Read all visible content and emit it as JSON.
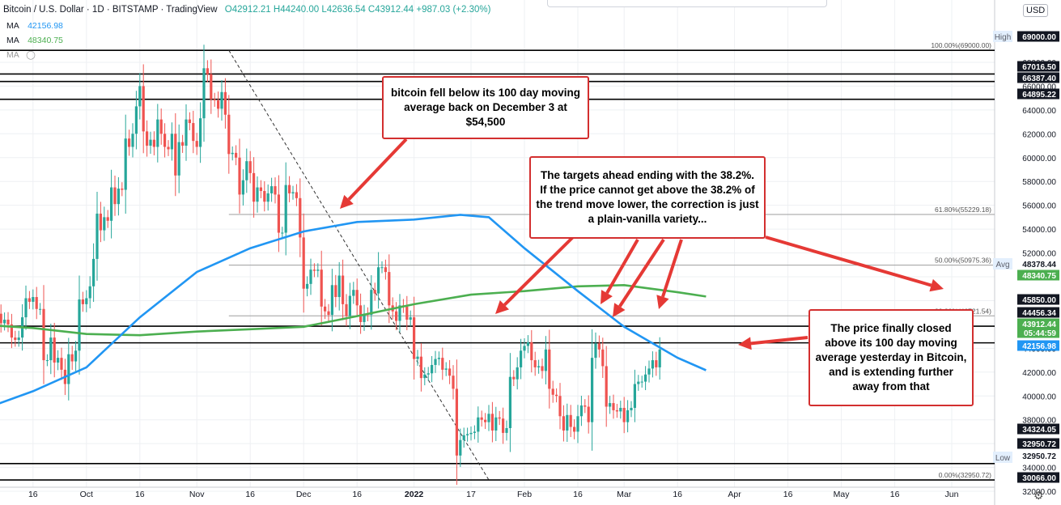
{
  "header": {
    "symbol": "Bitcoin / U.S. Dollar · 1D · BITSTAMP · TradingView",
    "ohlc": "O42912.21 H44240.00 L42636.54 C43912.44 +987.03 (+2.30%)",
    "ma_rows": [
      {
        "label": "MA",
        "value": "42156.98",
        "color": "#2196f3"
      },
      {
        "label": "MA",
        "value": "48340.75",
        "color": "#4caf50"
      },
      {
        "label": "MA",
        "value": "",
        "color": "#999999"
      }
    ]
  },
  "currency_button": "USD",
  "price_labels": [
    {
      "text": "69000.00",
      "style": "dark"
    },
    {
      "text": "67016.50",
      "style": "dark"
    },
    {
      "text": "66387.40",
      "style": "dark"
    },
    {
      "text": "64895.22",
      "style": "dark"
    },
    {
      "text": "45850.00",
      "style": "dark"
    },
    {
      "text": "44456.34",
      "style": "dark"
    },
    {
      "text": "34324.05",
      "style": "dark"
    },
    {
      "text": "32950.72",
      "style": "dark"
    },
    {
      "text": "30066.00",
      "style": "dark"
    },
    {
      "text": "48378.44",
      "style": "plain"
    },
    {
      "text": "48340.75",
      "style": "green"
    },
    {
      "text": "43912.44",
      "style": "green"
    },
    {
      "text": "05:44:59",
      "style": "green"
    },
    {
      "text": "42156.98",
      "style": "blue"
    },
    {
      "text": "32950.72",
      "style": "plain"
    }
  ],
  "price_tags": {
    "high": "High",
    "avg": "Avg",
    "low": "Low"
  },
  "notes": {
    "top": "bitcoin fell below its 100 day moving average back on December 3 at $54,500",
    "middle": "The targets ahead ending with the 38.2%. If the price cannot get above the 38.2% of the trend move lower, the correction is just a plain-vanilla variety...",
    "right": "The price finally closed above its 100 day moving average yesterday in Bitcoin, and is extending further away from that"
  },
  "chart_data": {
    "type": "candlestick",
    "title": "Bitcoin / U.S. Dollar · 1D · BITSTAMP",
    "y_axis": {
      "min": 30000,
      "max": 70000,
      "step": 2000,
      "position": "right"
    },
    "x_ticks": [
      "16",
      "Oct",
      "16",
      "Nov",
      "16",
      "Dec",
      "16",
      "2022",
      "17",
      "Feb",
      "16",
      "Mar",
      "16",
      "Apr",
      "16",
      "May",
      "16",
      "Jun"
    ],
    "x_tick_dates": [
      "2021-09-16",
      "2021-10-01",
      "2021-10-16",
      "2021-11-01",
      "2021-11-16",
      "2021-12-01",
      "2021-12-16",
      "2022-01-01",
      "2022-01-17",
      "2022-02-01",
      "2022-02-16",
      "2022-03-01",
      "2022-03-16",
      "2022-04-01",
      "2022-04-16",
      "2022-05-01",
      "2022-05-16",
      "2022-06-01"
    ],
    "first_date": "2021-09-03",
    "closes": [
      51000,
      51400,
      50900,
      46900,
      46100,
      46400,
      46000,
      44900,
      44700,
      44900,
      46600,
      48200,
      47900,
      48300,
      47300,
      47300,
      43000,
      43000,
      44900,
      42800,
      43200,
      42200,
      41000,
      43500,
      42900,
      43800,
      48100,
      47700,
      48200,
      49200,
      51500,
      55300,
      53900,
      55000,
      54700,
      57500,
      56100,
      57400,
      57300,
      61600,
      60900,
      62000,
      64300,
      66000,
      62200,
      61000,
      61500,
      60900,
      63200,
      62000,
      60900,
      60700,
      62000,
      58500,
      61300,
      61000,
      63200,
      62900,
      61400,
      60900,
      63300,
      67500,
      67000,
      64900,
      64800,
      64100,
      65500,
      63600,
      60300,
      60400,
      60000,
      56900,
      58100,
      59700,
      58700,
      56300,
      57500,
      57200,
      56300,
      57000,
      57600,
      56900,
      53700,
      53700,
      57700,
      57000,
      57100,
      56600,
      53300,
      49000,
      49400,
      50600,
      50500,
      50600,
      47500,
      47100,
      46800,
      49300,
      48300,
      50100,
      47700,
      46700,
      48400,
      48900,
      47600,
      46200,
      46900,
      46800,
      48900,
      48600,
      50800,
      50800,
      50400,
      47600,
      47100,
      46300,
      47600,
      47500,
      46400,
      46600,
      43100,
      43300,
      41500,
      41800,
      41900,
      42600,
      43100,
      43200,
      42200,
      42300,
      41700,
      40600,
      35000,
      36300,
      36700,
      36800,
      36900,
      37000,
      38200,
      38000,
      37800,
      38500,
      37100,
      38200,
      38100,
      36900,
      37300,
      41600,
      41400,
      42400,
      43800,
      44200,
      44500,
      43000,
      42400,
      42500,
      42100,
      43900,
      40600,
      40100,
      40000,
      38300,
      37100,
      38400,
      37400,
      37000,
      38300,
      39200,
      39100,
      37800,
      43200,
      44400,
      43900,
      42500,
      39100,
      39400,
      38800,
      38700,
      39000,
      37800,
      38800,
      39000,
      41000,
      41200,
      41200,
      41800,
      42300,
      43000,
      42400,
      43900
    ]
  },
  "overlays": {
    "ma100": [
      {
        "date": "2021-09-03",
        "value": 39000
      },
      {
        "date": "2021-09-16",
        "value": 40400
      },
      {
        "date": "2021-10-01",
        "value": 42400
      },
      {
        "date": "2021-10-16",
        "value": 46600
      },
      {
        "date": "2021-11-01",
        "value": 50400
      },
      {
        "date": "2021-11-16",
        "value": 52400
      },
      {
        "date": "2021-12-01",
        "value": 53800
      },
      {
        "date": "2021-12-16",
        "value": 54600
      },
      {
        "date": "2022-01-01",
        "value": 54800
      },
      {
        "date": "2022-01-14",
        "value": 55200
      },
      {
        "date": "2022-01-22",
        "value": 55000
      },
      {
        "date": "2022-02-01",
        "value": 52400
      },
      {
        "date": "2022-02-16",
        "value": 48800
      },
      {
        "date": "2022-03-01",
        "value": 45800
      },
      {
        "date": "2022-03-16",
        "value": 43200
      },
      {
        "date": "2022-03-24",
        "value": 42157
      }
    ],
    "ma200": [
      {
        "date": "2021-09-03",
        "value": 45950
      },
      {
        "date": "2021-09-16",
        "value": 45700
      },
      {
        "date": "2021-10-01",
        "value": 45200
      },
      {
        "date": "2021-10-16",
        "value": 45100
      },
      {
        "date": "2021-11-01",
        "value": 45400
      },
      {
        "date": "2021-11-16",
        "value": 45600
      },
      {
        "date": "2021-12-01",
        "value": 45800
      },
      {
        "date": "2021-12-16",
        "value": 46700
      },
      {
        "date": "2022-01-01",
        "value": 47700
      },
      {
        "date": "2022-01-17",
        "value": 48500
      },
      {
        "date": "2022-02-01",
        "value": 48800
      },
      {
        "date": "2022-02-16",
        "value": 49200
      },
      {
        "date": "2022-03-01",
        "value": 49300
      },
      {
        "date": "2022-03-16",
        "value": 48700
      },
      {
        "date": "2022-03-24",
        "value": 48341
      }
    ],
    "horizontal_levels": [
      69000,
      67016.5,
      66387.4,
      64895.22,
      45850,
      44456.34,
      34324.05,
      32950.72,
      30066
    ],
    "fib_levels": [
      {
        "value": 69000,
        "label": "100.00%(69000.00)"
      },
      {
        "value": 55229.18,
        "label": "61.80%(55229.18)"
      },
      {
        "value": 50975.36,
        "label": "50.00%(50975.36)"
      },
      {
        "value": 46721.54,
        "label": "38.20%(46721.54)"
      },
      {
        "value": 32950.72,
        "label": "0.00%(32950.72)"
      }
    ],
    "fib_start": "2021-11-10",
    "trendline": {
      "from": {
        "date": "2021-11-10",
        "value": 69000
      },
      "to": {
        "date": "2022-01-22",
        "value": 32950.72
      }
    }
  }
}
